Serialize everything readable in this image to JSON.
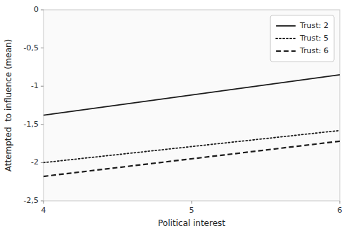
{
  "chart_data": {
    "type": "line",
    "x_label": "Political interest",
    "y_label": "Attempted  to influence (mean)",
    "x": [
      4,
      6
    ],
    "series": [
      {
        "name": "Trust: 2",
        "color": "#1a1a1a",
        "line_style": "solid",
        "values": [
          -1.38,
          -0.85
        ]
      },
      {
        "name": "Trust: 5",
        "color": "#1a1a1a",
        "line_style": "dotted",
        "values": [
          -2.0,
          -1.58
        ]
      },
      {
        "name": "Trust: 6",
        "color": "#1a1a1a",
        "line_style": "dashed",
        "values": [
          -2.18,
          -1.72
        ]
      }
    ],
    "xlim": [
      4,
      6
    ],
    "ylim": [
      -2.5,
      0
    ],
    "xticks": [
      4,
      5,
      6
    ],
    "yticks": [
      0,
      {
        "value": -0.5,
        "label": "-0,5"
      },
      -1,
      {
        "value": -1.5,
        "label": "-1,5"
      },
      -2,
      {
        "value": -2.5,
        "label": "-2,5"
      }
    ],
    "grid": false,
    "legend": "upper right"
  }
}
